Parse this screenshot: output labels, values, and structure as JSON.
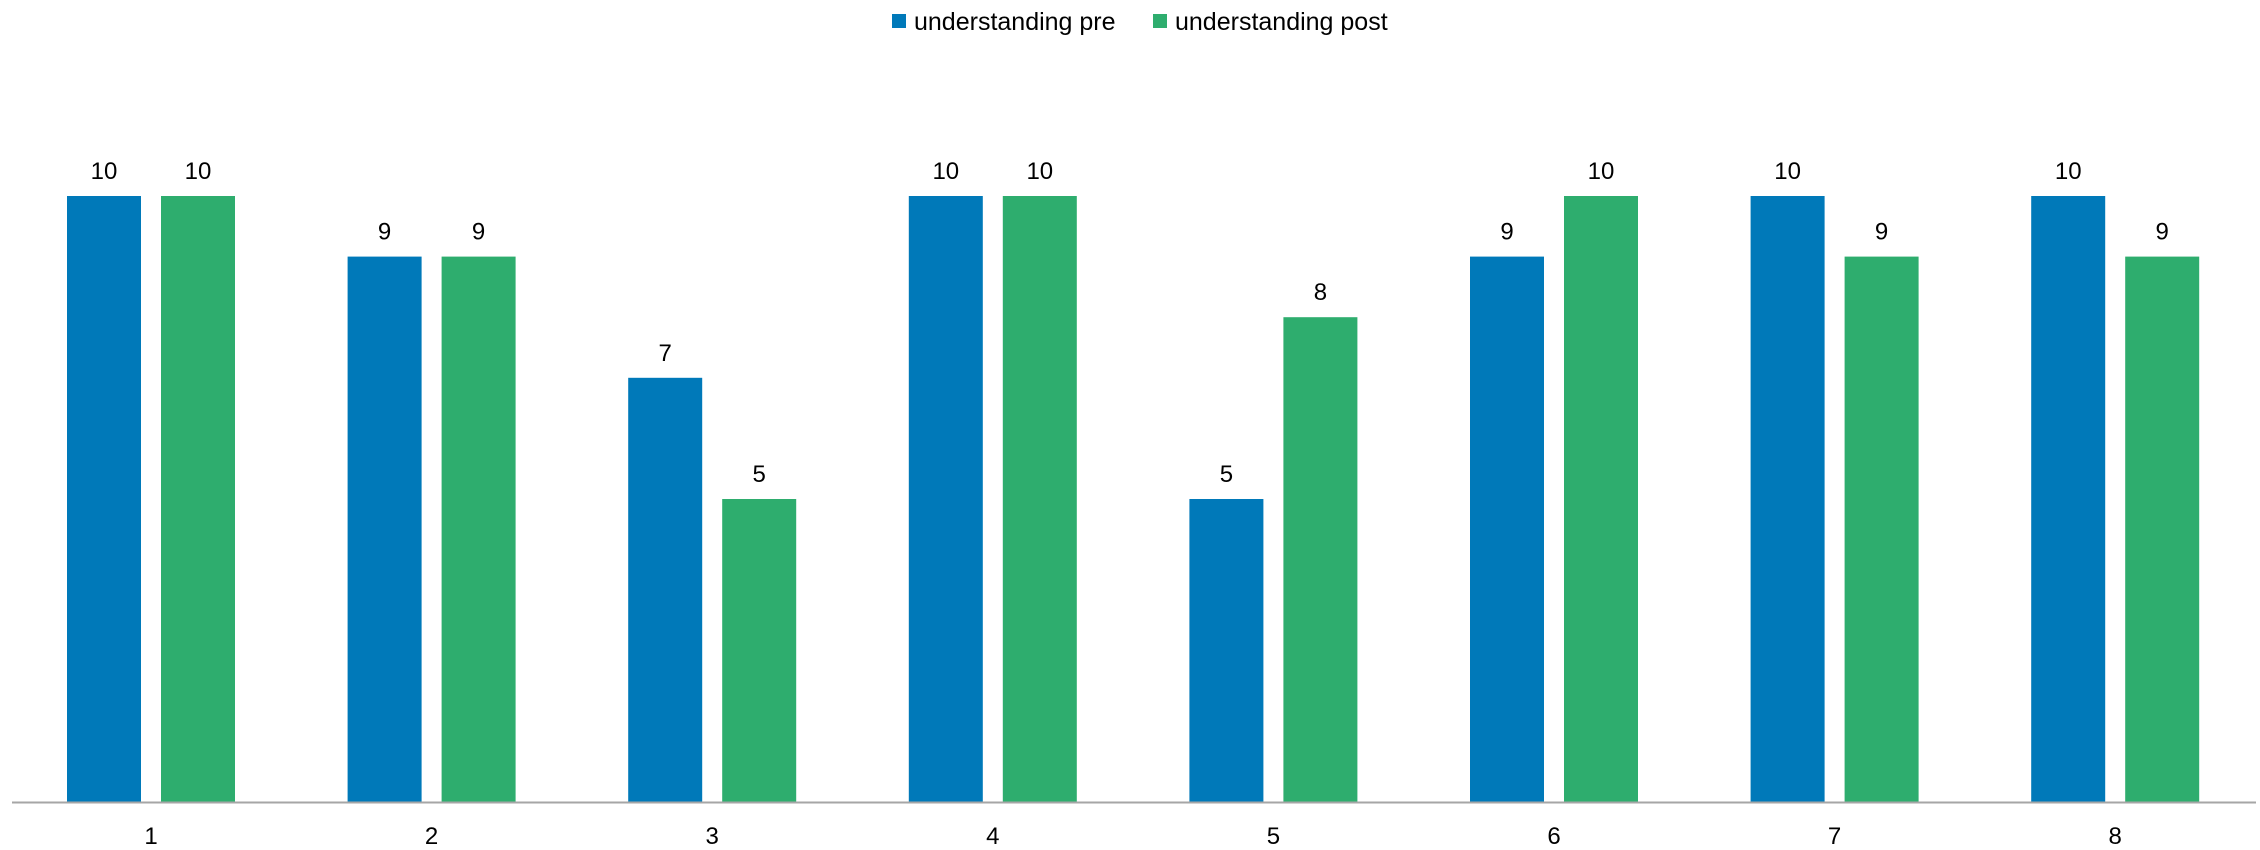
{
  "chart_data": {
    "type": "bar",
    "title": "",
    "xlabel": "",
    "ylabel": "",
    "categories": [
      "1",
      "2",
      "3",
      "4",
      "5",
      "6",
      "7",
      "8"
    ],
    "series": [
      {
        "name": "understanding pre",
        "color": "#0079B9",
        "values": [
          10,
          9,
          7,
          10,
          5,
          9,
          10,
          10
        ]
      },
      {
        "name": "understanding post",
        "color": "#2EAD6E",
        "values": [
          10,
          9,
          5,
          10,
          8,
          10,
          9,
          9
        ]
      }
    ],
    "ylim": [
      0,
      10
    ],
    "grid": false,
    "legend_position": "top",
    "data_labels": true,
    "axis_color": "#A6A6A6"
  }
}
